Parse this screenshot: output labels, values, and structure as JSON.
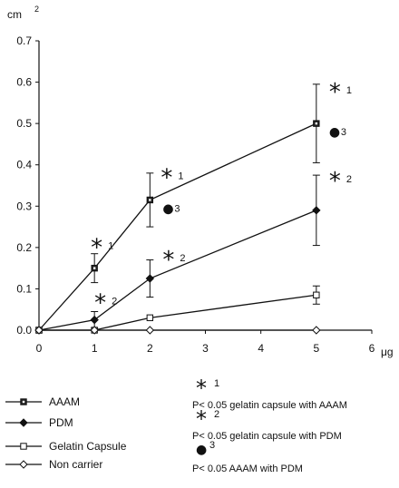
{
  "chart_data": {
    "type": "line",
    "ylabel": "cm",
    "ylabel_sup": "2",
    "xunit": "μg",
    "x_ticks": [
      "0",
      "1",
      "2",
      "3",
      "4",
      "5",
      "6"
    ],
    "y_ticks": [
      "0.0",
      "0.1",
      "0.2",
      "0.3",
      "0.4",
      "0.5",
      "0.6",
      "0.7"
    ],
    "xlim": [
      0,
      6
    ],
    "ylim": [
      0,
      0.7
    ],
    "grid": false,
    "legend_position": "bottom-left",
    "series": [
      {
        "name": "AAAM",
        "marker": "filled-square",
        "x": [
          0,
          1,
          2,
          5
        ],
        "y": [
          0.0,
          0.15,
          0.315,
          0.5
        ],
        "err": [
          0,
          0.035,
          0.065,
          0.095
        ]
      },
      {
        "name": "PDM",
        "marker": "filled-diamond",
        "x": [
          0,
          1,
          2,
          5
        ],
        "y": [
          0.0,
          0.025,
          0.125,
          0.29
        ],
        "err": [
          0,
          0.02,
          0.045,
          0.085
        ]
      },
      {
        "name": "Gelatin Capsule",
        "marker": "open-square",
        "x": [
          0,
          1,
          2,
          5
        ],
        "y": [
          0.0,
          0.0,
          0.03,
          0.085
        ],
        "err": [
          0,
          0,
          0,
          0.022
        ]
      },
      {
        "name": "Non carrier",
        "marker": "open-diamond",
        "x": [
          0,
          1,
          2,
          5
        ],
        "y": [
          0.0,
          0.0,
          0.0,
          0.0
        ],
        "err": [
          0,
          0,
          0,
          0
        ]
      }
    ],
    "annotations": [
      {
        "symbol": "*",
        "label": "1",
        "x": 1,
        "y": 0.15
      },
      {
        "symbol": "*",
        "label": "2",
        "x": 1,
        "y": 0.025
      },
      {
        "symbol": "*",
        "label": "1",
        "x": 2,
        "y": 0.315
      },
      {
        "symbol": "●",
        "label": "3",
        "x": 2,
        "y": 0.315
      },
      {
        "symbol": "*",
        "label": "2",
        "x": 2,
        "y": 0.125
      },
      {
        "symbol": "*",
        "label": "1",
        "x": 5,
        "y": 0.5
      },
      {
        "symbol": "●",
        "label": "3",
        "x": 5,
        "y": 0.5
      },
      {
        "symbol": "*",
        "label": "2",
        "x": 5,
        "y": 0.29
      }
    ],
    "significance_notes": [
      {
        "symbol": "*",
        "label": "1",
        "text": "P< 0.05 gelatin capsule with AAAM"
      },
      {
        "symbol": "*",
        "label": "2",
        "text": "P< 0.05 gelatin capsule with PDM"
      },
      {
        "symbol": "●",
        "label": "3",
        "text": "P< 0.05 AAAM with PDM"
      }
    ]
  }
}
